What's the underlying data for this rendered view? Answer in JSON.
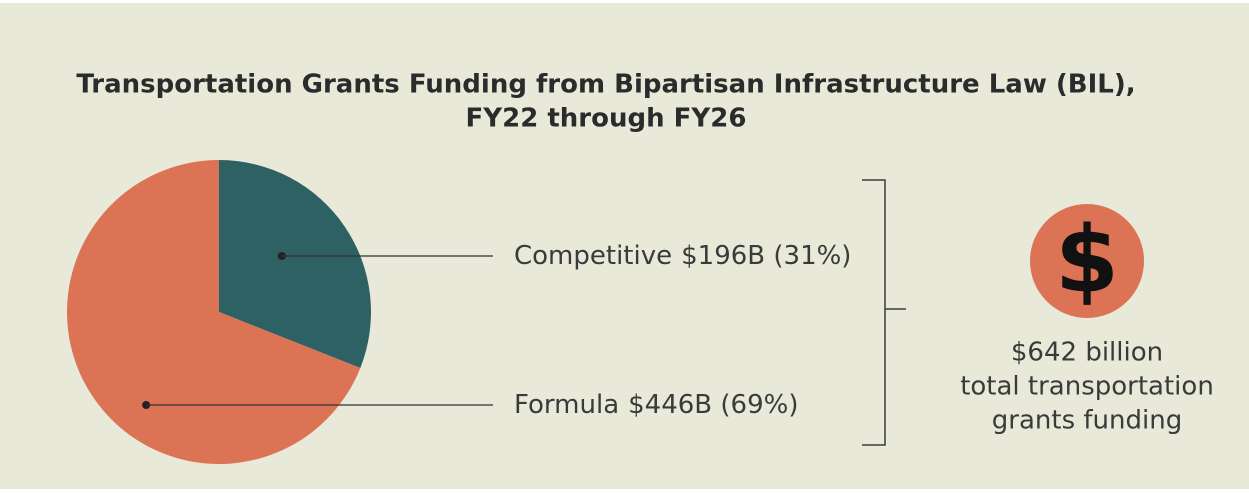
{
  "chart_data": {
    "type": "pie",
    "title": [
      "Transportation Grants Funding from Bipartisan Infrastructure Law (BIL),",
      "FY22 through FY26"
    ],
    "categories": [
      "Competitive",
      "Formula"
    ],
    "values": [
      31,
      69
    ],
    "value_labels": [
      "$196B (31%)",
      "$446B (69%)"
    ],
    "colors": [
      "#2d6163",
      "#dc7355"
    ],
    "icon": "$",
    "total": [
      "$642 billion",
      "total transportation",
      "grants funding"
    ]
  }
}
